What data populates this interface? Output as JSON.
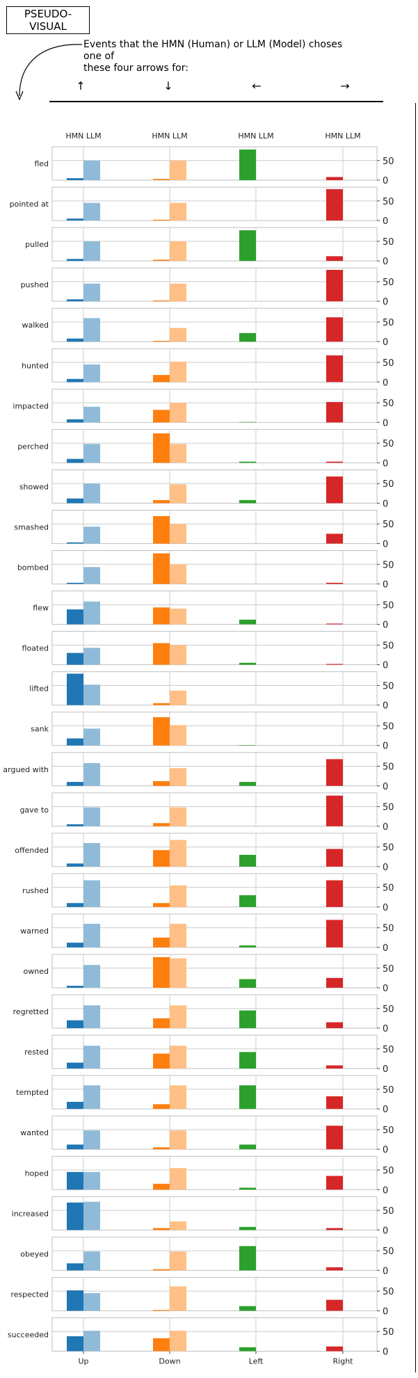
{
  "header": {
    "box_line1": "PSEUDO-",
    "box_line2": "VISUAL",
    "caption_line1": "Events that the HMN (Human) or LLM (Model) choses one of",
    "caption_line2": "these four arrows for:"
  },
  "arrows": [
    "↑",
    "↓",
    "←",
    "→"
  ],
  "chart_data": {
    "type": "bar",
    "layout": "small-multiples",
    "column_headers": [
      "HMN LLM",
      "HMN LLM",
      "HMN LLM",
      "HMN LLM"
    ],
    "directions": [
      "Up",
      "Down",
      "Left",
      "Right"
    ],
    "series": [
      "HMN",
      "LLM"
    ],
    "y_ticks": [
      0,
      50
    ],
    "ylim": [
      0,
      85
    ],
    "colors": {
      "Up": {
        "HMN": "#1f77b4",
        "LLM": "#8fbbd9"
      },
      "Down": {
        "HMN": "#ff7f0e",
        "LLM": "#ffbf86"
      },
      "Left": {
        "HMN": "#2ca02c",
        "LLM": "#95cf95"
      },
      "Right": {
        "HMN": "#d62728",
        "LLM": "#ea9293"
      }
    },
    "rows": [
      {
        "verb": "fled",
        "values": [
          [
            5,
            50
          ],
          [
            3,
            50
          ],
          [
            78,
            0
          ],
          [
            8,
            0
          ]
        ]
      },
      {
        "verb": "pointed at",
        "values": [
          [
            5,
            45
          ],
          [
            2,
            45
          ],
          [
            0,
            0
          ],
          [
            80,
            0
          ]
        ]
      },
      {
        "verb": "pulled",
        "values": [
          [
            5,
            50
          ],
          [
            3,
            50
          ],
          [
            78,
            0
          ],
          [
            12,
            0
          ]
        ]
      },
      {
        "verb": "pushed",
        "values": [
          [
            5,
            45
          ],
          [
            2,
            45
          ],
          [
            0,
            0
          ],
          [
            80,
            0
          ]
        ]
      },
      {
        "verb": "walked",
        "values": [
          [
            8,
            60
          ],
          [
            2,
            35
          ],
          [
            22,
            0
          ],
          [
            62,
            0
          ]
        ]
      },
      {
        "verb": "hunted",
        "values": [
          [
            8,
            45
          ],
          [
            18,
            52
          ],
          [
            0,
            0
          ],
          [
            68,
            0
          ]
        ]
      },
      {
        "verb": "impacted",
        "values": [
          [
            8,
            40
          ],
          [
            32,
            50
          ],
          [
            1,
            0
          ],
          [
            52,
            0
          ]
        ]
      },
      {
        "verb": "perched",
        "values": [
          [
            10,
            48
          ],
          [
            75,
            48
          ],
          [
            3,
            0
          ],
          [
            3,
            0
          ]
        ]
      },
      {
        "verb": "showed",
        "values": [
          [
            12,
            50
          ],
          [
            8,
            48
          ],
          [
            8,
            0
          ],
          [
            68,
            0
          ]
        ]
      },
      {
        "verb": "smashed",
        "values": [
          [
            3,
            43
          ],
          [
            70,
            50
          ],
          [
            0,
            0
          ],
          [
            25,
            0
          ]
        ]
      },
      {
        "verb": "bombed",
        "values": [
          [
            3,
            43
          ],
          [
            78,
            50
          ],
          [
            0,
            0
          ],
          [
            3,
            0
          ]
        ]
      },
      {
        "verb": "flew",
        "values": [
          [
            38,
            58
          ],
          [
            43,
            40
          ],
          [
            12,
            0
          ],
          [
            2,
            0
          ]
        ]
      },
      {
        "verb": "floated",
        "values": [
          [
            30,
            43
          ],
          [
            55,
            50
          ],
          [
            5,
            0
          ],
          [
            2,
            0
          ]
        ]
      },
      {
        "verb": "lifted",
        "values": [
          [
            80,
            52
          ],
          [
            5,
            37
          ],
          [
            0,
            0
          ],
          [
            0,
            0
          ]
        ]
      },
      {
        "verb": "sank",
        "values": [
          [
            18,
            43
          ],
          [
            72,
            52
          ],
          [
            1,
            0
          ],
          [
            0,
            0
          ]
        ]
      },
      {
        "verb": "argued with",
        "values": [
          [
            10,
            58
          ],
          [
            12,
            45
          ],
          [
            10,
            0
          ],
          [
            68,
            0
          ]
        ]
      },
      {
        "verb": "gave to",
        "values": [
          [
            5,
            48
          ],
          [
            8,
            48
          ],
          [
            0,
            0
          ],
          [
            78,
            0
          ]
        ]
      },
      {
        "verb": "offended",
        "values": [
          [
            8,
            60
          ],
          [
            42,
            68
          ],
          [
            30,
            0
          ],
          [
            45,
            0
          ]
        ]
      },
      {
        "verb": "rushed",
        "values": [
          [
            10,
            68
          ],
          [
            10,
            55
          ],
          [
            30,
            0
          ],
          [
            68,
            0
          ]
        ]
      },
      {
        "verb": "warned",
        "values": [
          [
            12,
            60
          ],
          [
            25,
            60
          ],
          [
            5,
            0
          ],
          [
            70,
            0
          ]
        ]
      },
      {
        "verb": "owned",
        "values": [
          [
            5,
            58
          ],
          [
            78,
            75
          ],
          [
            22,
            0
          ],
          [
            25,
            0
          ]
        ]
      },
      {
        "verb": "regretted",
        "values": [
          [
            20,
            58
          ],
          [
            25,
            58
          ],
          [
            45,
            0
          ],
          [
            15,
            0
          ]
        ]
      },
      {
        "verb": "rested",
        "values": [
          [
            15,
            58
          ],
          [
            38,
            58
          ],
          [
            42,
            0
          ],
          [
            8,
            0
          ]
        ]
      },
      {
        "verb": "tempted",
        "values": [
          [
            18,
            60
          ],
          [
            12,
            60
          ],
          [
            60,
            0
          ],
          [
            32,
            0
          ]
        ]
      },
      {
        "verb": "wanted",
        "values": [
          [
            12,
            48
          ],
          [
            5,
            48
          ],
          [
            12,
            0
          ],
          [
            60,
            0
          ]
        ]
      },
      {
        "verb": "hoped",
        "values": [
          [
            45,
            45
          ],
          [
            15,
            55
          ],
          [
            5,
            0
          ],
          [
            35,
            0
          ]
        ]
      },
      {
        "verb": "increased",
        "values": [
          [
            70,
            72
          ],
          [
            5,
            22
          ],
          [
            8,
            0
          ],
          [
            5,
            0
          ]
        ]
      },
      {
        "verb": "obeyed",
        "values": [
          [
            18,
            48
          ],
          [
            3,
            48
          ],
          [
            62,
            0
          ],
          [
            8,
            0
          ]
        ]
      },
      {
        "verb": "respected",
        "values": [
          [
            52,
            45
          ],
          [
            2,
            62
          ],
          [
            12,
            0
          ],
          [
            28,
            0
          ]
        ]
      },
      {
        "verb": "succeeded",
        "values": [
          [
            38,
            52
          ],
          [
            33,
            52
          ],
          [
            10,
            0
          ],
          [
            12,
            0
          ]
        ]
      }
    ]
  }
}
